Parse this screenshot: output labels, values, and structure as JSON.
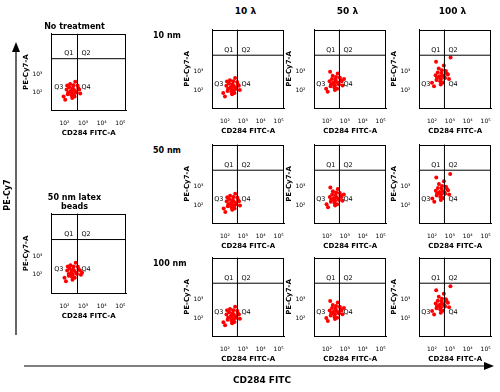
{
  "figure": {
    "x_label": "CD284 FITC",
    "y_label": "PE-Cy7",
    "column_labels": [
      "10 λ",
      "50 λ",
      "100 λ"
    ],
    "row_labels": [
      "10 nm",
      "50 nm",
      "100 nm"
    ]
  },
  "chart_data": [
    {
      "type": "scatter",
      "title": "No treatment",
      "x_label": "CD284 FITC-A",
      "y_label": "PE-Cy7-A",
      "log": true,
      "grid": false,
      "color": "#ff0000",
      "marker": "circle",
      "xlim": [
        20,
        200000
      ],
      "ylim": [
        10,
        200000
      ],
      "xticks": [
        {
          "value": 100,
          "label": "10²"
        },
        {
          "value": 1000,
          "label": "10³"
        },
        {
          "value": 10000,
          "label": "10⁴"
        },
        {
          "value": 100000,
          "label": "10⁵"
        }
      ],
      "yticks": [
        {
          "value": 100,
          "label": "10²"
        },
        {
          "value": 1000,
          "label": "10³"
        }
      ],
      "quadrants": {
        "x": 500,
        "y": 8000,
        "labels": [
          "Q1",
          "Q2",
          "Q3",
          "Q4"
        ]
      },
      "x": [
        90,
        150,
        210,
        260,
        320,
        400,
        180,
        240,
        130,
        300,
        450,
        550,
        700,
        110,
        200,
        350,
        280,
        160,
        500,
        230,
        380,
        620,
        140,
        260,
        330
      ],
      "values": [
        60,
        80,
        110,
        90,
        140,
        120,
        200,
        70,
        150,
        260,
        100,
        180,
        90,
        40,
        300,
        60,
        180,
        100,
        250,
        130,
        400,
        150,
        250,
        50,
        90
      ]
    },
    {
      "type": "scatter",
      "title": "50 nm latex beads",
      "x_label": "CD284 FITC-A",
      "y_label": "PE-Cy7-A",
      "log": true,
      "grid": false,
      "color": "#ff0000",
      "marker": "circle",
      "xlim": [
        20,
        200000
      ],
      "ylim": [
        10,
        200000
      ],
      "xticks": [
        {
          "value": 100,
          "label": "10²"
        },
        {
          "value": 1000,
          "label": "10³"
        },
        {
          "value": 10000,
          "label": "10⁴"
        },
        {
          "value": 100000,
          "label": "10⁵"
        }
      ],
      "yticks": [
        {
          "value": 100,
          "label": "10²"
        },
        {
          "value": 1000,
          "label": "10³"
        }
      ],
      "quadrants": {
        "x": 500,
        "y": 8000,
        "labels": [
          "Q1",
          "Q2",
          "Q3",
          "Q4"
        ]
      },
      "x": [
        100,
        170,
        220,
        280,
        340,
        420,
        190,
        250,
        140,
        310,
        470,
        580,
        760,
        120,
        210,
        360,
        290,
        170,
        520,
        240,
        400,
        680,
        150,
        270,
        880
      ],
      "values": [
        70,
        90,
        120,
        100,
        160,
        130,
        220,
        80,
        170,
        280,
        110,
        200,
        100,
        45,
        330,
        70,
        200,
        110,
        270,
        150,
        450,
        170,
        280,
        55,
        130
      ]
    },
    {
      "type": "scatter",
      "x_label": "CD284 FITC-A",
      "y_label": "PE-Cy7-A",
      "log": true,
      "grid": false,
      "color": "#ff0000",
      "marker": "circle",
      "xlim": [
        20,
        200000
      ],
      "ylim": [
        10,
        200000
      ],
      "xticks": [
        {
          "value": 100,
          "label": "10²"
        },
        {
          "value": 1000,
          "label": "10³"
        },
        {
          "value": 10000,
          "label": "10⁴"
        },
        {
          "value": 100000,
          "label": "10⁵"
        }
      ],
      "yticks": [
        {
          "value": 100,
          "label": "10²"
        },
        {
          "value": 1000,
          "label": "10³"
        }
      ],
      "quadrants": {
        "x": 500,
        "y": 8000,
        "labels": [
          "Q1",
          "Q2",
          "Q3",
          "Q4"
        ]
      },
      "x": [
        80,
        140,
        200,
        250,
        310,
        390,
        170,
        230,
        120,
        290,
        430,
        530,
        680,
        100,
        190,
        340,
        270,
        150,
        480,
        220,
        370,
        600,
        130,
        250,
        320
      ],
      "values": [
        70,
        90,
        130,
        100,
        160,
        140,
        230,
        80,
        170,
        300,
        120,
        200,
        100,
        45,
        340,
        70,
        210,
        120,
        280,
        150,
        450,
        170,
        290,
        60,
        100
      ]
    },
    {
      "type": "scatter",
      "x_label": "CD284 FITC-A",
      "y_label": "PE-Cy7-A",
      "log": true,
      "grid": false,
      "color": "#ff0000",
      "marker": "circle",
      "xlim": [
        20,
        200000
      ],
      "ylim": [
        10,
        200000
      ],
      "xticks": [
        {
          "value": 100,
          "label": "10²"
        },
        {
          "value": 1000,
          "label": "10³"
        },
        {
          "value": 10000,
          "label": "10⁴"
        },
        {
          "value": 100000,
          "label": "10⁵"
        }
      ],
      "yticks": [
        {
          "value": 100,
          "label": "10²"
        },
        {
          "value": 1000,
          "label": "10³"
        }
      ],
      "quadrants": {
        "x": 500,
        "y": 8000,
        "labels": [
          "Q1",
          "Q2",
          "Q3",
          "Q4"
        ]
      },
      "x": [
        90,
        160,
        220,
        280,
        340,
        430,
        190,
        260,
        140,
        320,
        470,
        580,
        750,
        110,
        210,
        370,
        300,
        170,
        520,
        240,
        400,
        660,
        150,
        280,
        900
      ],
      "values": [
        120,
        160,
        220,
        180,
        280,
        240,
        400,
        140,
        300,
        520,
        200,
        350,
        180,
        80,
        600,
        120,
        380,
        210,
        480,
        260,
        800,
        300,
        1000,
        100,
        400
      ]
    },
    {
      "type": "scatter",
      "x_label": "CD284 FITC-A",
      "y_label": "PE-Cy7-A",
      "log": true,
      "grid": false,
      "color": "#ff0000",
      "marker": "circle",
      "xlim": [
        20,
        200000
      ],
      "ylim": [
        10,
        200000
      ],
      "xticks": [
        {
          "value": 100,
          "label": "10²"
        },
        {
          "value": 1000,
          "label": "10³"
        },
        {
          "value": 10000,
          "label": "10⁴"
        },
        {
          "value": 100000,
          "label": "10⁵"
        }
      ],
      "yticks": [
        {
          "value": 100,
          "label": "10²"
        },
        {
          "value": 1000,
          "label": "10³"
        }
      ],
      "quadrants": {
        "x": 500,
        "y": 8000,
        "labels": [
          "Q1",
          "Q2",
          "Q3",
          "Q4"
        ]
      },
      "x": [
        100,
        180,
        250,
        320,
        400,
        500,
        210,
        290,
        160,
        360,
        540,
        680,
        900,
        130,
        240,
        420,
        340,
        190,
        600,
        270,
        460,
        780,
        170,
        310,
        1100
      ],
      "values": [
        250,
        350,
        480,
        400,
        600,
        520,
        900,
        300,
        650,
        1200,
        450,
        800,
        400,
        160,
        1500,
        260,
        850,
        460,
        1100,
        560,
        2200,
        700,
        3500,
        200,
        6000
      ]
    },
    {
      "type": "scatter",
      "x_label": "CD284 FITC-A",
      "y_label": "PE-Cy7-A",
      "log": true,
      "grid": false,
      "color": "#ff0000",
      "marker": "circle",
      "xlim": [
        20,
        200000
      ],
      "ylim": [
        10,
        200000
      ],
      "xticks": [
        {
          "value": 100,
          "label": "10²"
        },
        {
          "value": 1000,
          "label": "10³"
        },
        {
          "value": 10000,
          "label": "10⁴"
        },
        {
          "value": 100000,
          "label": "10⁵"
        }
      ],
      "yticks": [
        {
          "value": 100,
          "label": "10²"
        },
        {
          "value": 1000,
          "label": "10³"
        }
      ],
      "quadrants": {
        "x": 500,
        "y": 8000,
        "labels": [
          "Q1",
          "Q2",
          "Q3",
          "Q4"
        ]
      },
      "x": [
        85,
        145,
        205,
        255,
        315,
        395,
        175,
        235,
        125,
        295,
        440,
        540,
        690,
        105,
        195,
        345,
        275,
        155,
        490,
        225,
        375,
        610,
        135,
        255,
        330
      ],
      "values": [
        65,
        85,
        120,
        95,
        150,
        130,
        210,
        75,
        160,
        280,
        110,
        190,
        95,
        42,
        320,
        65,
        190,
        110,
        260,
        140,
        420,
        160,
        270,
        55,
        95
      ]
    },
    {
      "type": "scatter",
      "x_label": "CD284 FITC-A",
      "y_label": "PE-Cy7-A",
      "log": true,
      "grid": false,
      "color": "#ff0000",
      "marker": "circle",
      "xlim": [
        20,
        200000
      ],
      "ylim": [
        10,
        200000
      ],
      "xticks": [
        {
          "value": 100,
          "label": "10²"
        },
        {
          "value": 1000,
          "label": "10³"
        },
        {
          "value": 10000,
          "label": "10⁴"
        },
        {
          "value": 100000,
          "label": "10⁵"
        }
      ],
      "yticks": [
        {
          "value": 100,
          "label": "10²"
        },
        {
          "value": 1000,
          "label": "10³"
        }
      ],
      "quadrants": {
        "x": 500,
        "y": 8000,
        "labels": [
          "Q1",
          "Q2",
          "Q3",
          "Q4"
        ]
      },
      "x": [
        95,
        165,
        225,
        285,
        345,
        435,
        195,
        265,
        145,
        325,
        475,
        585,
        740,
        115,
        215,
        375,
        305,
        175,
        525,
        245,
        405,
        650,
        155,
        285,
        880
      ],
      "values": [
        110,
        150,
        200,
        170,
        260,
        220,
        380,
        130,
        280,
        480,
        190,
        330,
        170,
        75,
        560,
        110,
        350,
        200,
        450,
        240,
        750,
        280,
        900,
        95,
        380
      ]
    },
    {
      "type": "scatter",
      "x_label": "CD284 FITC-A",
      "y_label": "PE-Cy7-A",
      "log": true,
      "grid": false,
      "color": "#ff0000",
      "marker": "circle",
      "xlim": [
        20,
        200000
      ],
      "ylim": [
        10,
        200000
      ],
      "xticks": [
        {
          "value": 100,
          "label": "10²"
        },
        {
          "value": 1000,
          "label": "10³"
        },
        {
          "value": 10000,
          "label": "10⁴"
        },
        {
          "value": 100000,
          "label": "10⁵"
        }
      ],
      "yticks": [
        {
          "value": 100,
          "label": "10²"
        },
        {
          "value": 1000,
          "label": "10³"
        }
      ],
      "quadrants": {
        "x": 500,
        "y": 8000,
        "labels": [
          "Q1",
          "Q2",
          "Q3",
          "Q4"
        ]
      },
      "x": [
        105,
        185,
        255,
        325,
        405,
        505,
        215,
        295,
        165,
        365,
        545,
        690,
        920,
        135,
        245,
        425,
        345,
        195,
        610,
        275,
        465,
        790,
        175,
        315,
        1050
      ],
      "values": [
        230,
        330,
        450,
        380,
        560,
        480,
        850,
        280,
        600,
        1100,
        420,
        750,
        380,
        150,
        1400,
        240,
        800,
        430,
        1000,
        520,
        2000,
        650,
        3200,
        190,
        5000
      ]
    },
    {
      "type": "scatter",
      "x_label": "CD284 FITC-A",
      "y_label": "PE-Cy7-A",
      "log": true,
      "grid": false,
      "color": "#ff0000",
      "marker": "circle",
      "xlim": [
        20,
        200000
      ],
      "ylim": [
        10,
        200000
      ],
      "xticks": [
        {
          "value": 100,
          "label": "10²"
        },
        {
          "value": 1000,
          "label": "10³"
        },
        {
          "value": 10000,
          "label": "10⁴"
        },
        {
          "value": 100000,
          "label": "10⁵"
        }
      ],
      "yticks": [
        {
          "value": 100,
          "label": "10²"
        },
        {
          "value": 1000,
          "label": "10³"
        }
      ],
      "quadrants": {
        "x": 500,
        "y": 8000,
        "labels": [
          "Q1",
          "Q2",
          "Q3",
          "Q4"
        ]
      },
      "x": [
        82,
        142,
        202,
        252,
        312,
        392,
        172,
        232,
        122,
        292,
        435,
        535,
        685,
        102,
        192,
        342,
        272,
        152,
        485,
        222,
        372,
        605,
        132,
        252,
        325
      ],
      "values": [
        60,
        80,
        115,
        90,
        145,
        125,
        205,
        72,
        155,
        270,
        105,
        185,
        92,
        40,
        310,
        62,
        185,
        105,
        255,
        135,
        410,
        155,
        265,
        52,
        92
      ]
    },
    {
      "type": "scatter",
      "x_label": "CD284 FITC-A",
      "y_label": "PE-Cy7-A",
      "log": true,
      "grid": false,
      "color": "#ff0000",
      "marker": "circle",
      "xlim": [
        20,
        200000
      ],
      "ylim": [
        10,
        200000
      ],
      "xticks": [
        {
          "value": 100,
          "label": "10²"
        },
        {
          "value": 1000,
          "label": "10³"
        },
        {
          "value": 10000,
          "label": "10⁴"
        },
        {
          "value": 100000,
          "label": "10⁵"
        }
      ],
      "yticks": [
        {
          "value": 100,
          "label": "10²"
        },
        {
          "value": 1000,
          "label": "10³"
        }
      ],
      "quadrants": {
        "x": 500,
        "y": 8000,
        "labels": [
          "Q1",
          "Q2",
          "Q3",
          "Q4"
        ]
      },
      "x": [
        92,
        162,
        222,
        282,
        342,
        432,
        192,
        262,
        142,
        322,
        472,
        582,
        745,
        112,
        212,
        372,
        302,
        172,
        522,
        242,
        402,
        655,
        152,
        282,
        890
      ],
      "values": [
        100,
        140,
        190,
        160,
        240,
        210,
        360,
        120,
        260,
        450,
        180,
        310,
        160,
        70,
        520,
        105,
        330,
        190,
        420,
        230,
        700,
        260,
        850,
        90,
        350
      ]
    },
    {
      "type": "scatter",
      "x_label": "CD284 FITC-A",
      "y_label": "PE-Cy7-A",
      "log": true,
      "grid": false,
      "color": "#ff0000",
      "marker": "circle",
      "xlim": [
        20,
        200000
      ],
      "ylim": [
        10,
        200000
      ],
      "xticks": [
        {
          "value": 100,
          "label": "10²"
        },
        {
          "value": 1000,
          "label": "10³"
        },
        {
          "value": 10000,
          "label": "10⁴"
        },
        {
          "value": 100000,
          "label": "10⁵"
        }
      ],
      "yticks": [
        {
          "value": 100,
          "label": "10²"
        },
        {
          "value": 1000,
          "label": "10³"
        }
      ],
      "quadrants": {
        "x": 500,
        "y": 8000,
        "labels": [
          "Q1",
          "Q2",
          "Q3",
          "Q4"
        ]
      },
      "x": [
        102,
        182,
        252,
        322,
        402,
        502,
        212,
        292,
        162,
        362,
        542,
        685,
        910,
        132,
        242,
        422,
        342,
        192,
        605,
        272,
        462,
        785,
        172,
        312,
        1080
      ],
      "values": [
        240,
        340,
        460,
        390,
        580,
        500,
        870,
        290,
        620,
        1150,
        430,
        780,
        390,
        155,
        1450,
        250,
        820,
        440,
        1050,
        540,
        2100,
        680,
        3300,
        195,
        5500
      ]
    }
  ]
}
